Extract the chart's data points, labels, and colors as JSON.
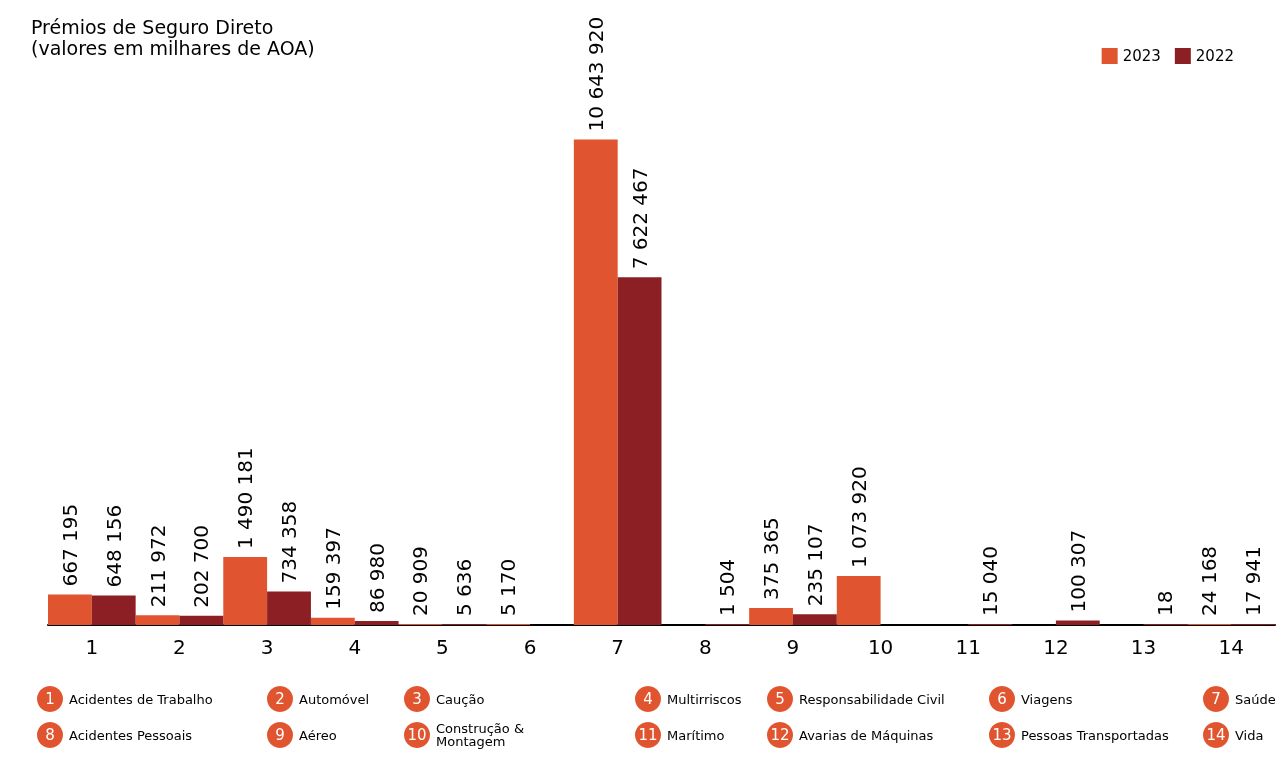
{
  "chart_data": {
    "type": "bar",
    "title": "Prémios de Seguro Direto",
    "subtitle": "(valores em milhares de AOA)",
    "categories": [
      "1",
      "2",
      "3",
      "4",
      "5",
      "6",
      "7",
      "8",
      "9",
      "10",
      "11",
      "12",
      "13",
      "14"
    ],
    "series": [
      {
        "name": "2023",
        "color": "#e0552f",
        "values": [
          667195,
          211972,
          1490181,
          159397,
          20909,
          5170,
          10643920,
          null,
          375365,
          1073920,
          null,
          null,
          null,
          24168
        ],
        "value_labels": [
          "667 195",
          "211 972",
          "1 490 181",
          "159 397",
          "20 909",
          "5 170",
          "10 643 920",
          null,
          "375 365",
          "1 073 920",
          null,
          null,
          null,
          "24 168"
        ]
      },
      {
        "name": "2022",
        "color": "#8b1f24",
        "values": [
          648156,
          202700,
          734358,
          86980,
          5636,
          null,
          7622467,
          1504,
          235107,
          null,
          15040,
          100307,
          18,
          17941
        ],
        "value_labels": [
          "648 156",
          "202 700",
          "734 358",
          "86 980",
          "5 636",
          null,
          "7 622 467",
          "1 504",
          "235 107",
          null,
          "15 040",
          "100 307",
          "18",
          "17 941"
        ]
      }
    ],
    "annotations": [
      "Acidentes de Trabalho",
      "Automóvel",
      "Caução",
      "Multirriscos",
      "Responsabilidade Civil",
      "Viagens",
      "Saúde",
      "Acidentes Pessoais",
      "Aéreo",
      "Construção &\nMontagem",
      "Marítimo",
      "Avarias de Máquinas",
      "Pessoas Transportadas",
      "Vida"
    ],
    "legend": "top right"
  }
}
